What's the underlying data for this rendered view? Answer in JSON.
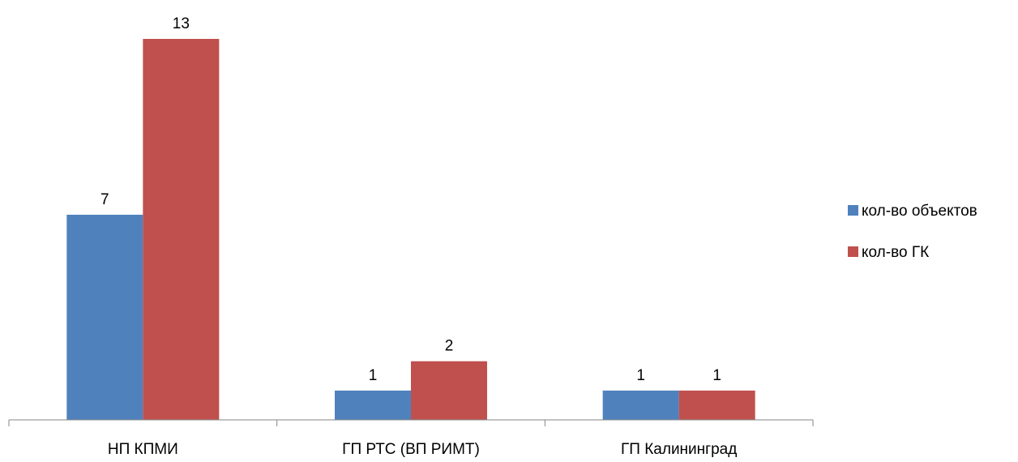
{
  "chart_data": {
    "type": "bar",
    "categories": [
      "НП КПМИ",
      "ГП РТС (ВП РИМТ)",
      "ГП Калининград"
    ],
    "series": [
      {
        "name": "кол-во объектов",
        "values": [
          7,
          1,
          1
        ],
        "color": "#4F81BD"
      },
      {
        "name": "кол-во ГК",
        "values": [
          13,
          2,
          1
        ],
        "color": "#C0504D"
      }
    ],
    "title": "",
    "xlabel": "",
    "ylabel": "",
    "ylim": [
      0,
      13
    ],
    "grid": false,
    "legend_position": "right",
    "data_labels": true
  }
}
